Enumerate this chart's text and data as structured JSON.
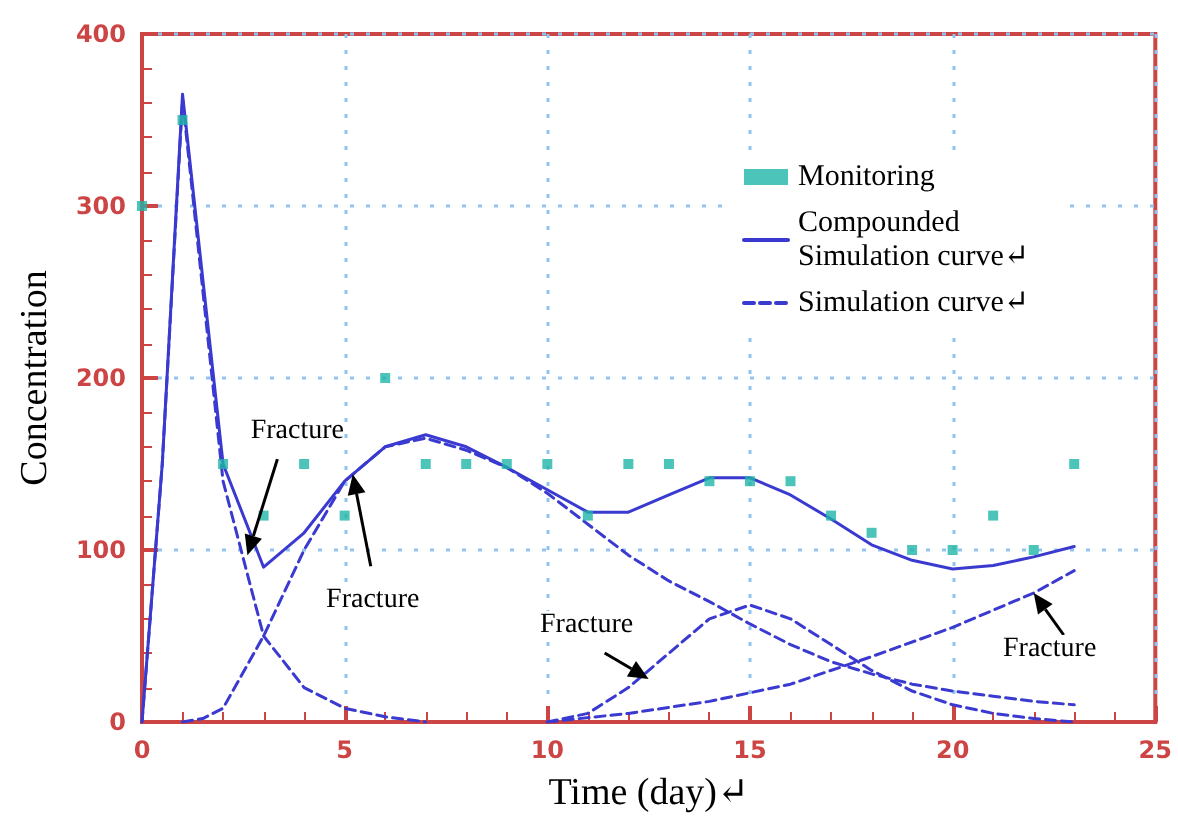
{
  "chart_data": {
    "type": "line",
    "xlabel": "Time (day)↵",
    "ylabel": "Concentration",
    "xlim": [
      0,
      25
    ],
    "xticks": [
      0,
      5,
      10,
      15,
      20,
      25
    ],
    "ylim": [
      0,
      400
    ],
    "yticks": [
      0,
      100,
      200,
      300,
      400
    ],
    "grid": true,
    "legend": "top right",
    "series": [
      {
        "name": "Monitoring",
        "type": "scatter",
        "marker": "square",
        "color": "#1fb5a8",
        "x": [
          0,
          1,
          2,
          3,
          4,
          5,
          6,
          7,
          8,
          9,
          10,
          11,
          12,
          13,
          14,
          15,
          16,
          17,
          18,
          19,
          20,
          21,
          22,
          23
        ],
        "values": [
          300,
          350,
          150,
          120,
          150,
          120,
          200,
          150,
          150,
          150,
          150,
          120,
          150,
          150,
          140,
          140,
          140,
          120,
          110,
          100,
          100,
          120,
          100,
          150
        ]
      },
      {
        "name": "Compounded Simulation curve↵",
        "line_style": "solid",
        "color": "#3a3ad0",
        "x": [
          0,
          0.5,
          1,
          2,
          3,
          4,
          5,
          6,
          7,
          8,
          9,
          10,
          11,
          12,
          13,
          14,
          15,
          16,
          17,
          18,
          19,
          20,
          21,
          22,
          23
        ],
        "values": [
          0,
          150,
          365,
          150,
          90,
          110,
          140,
          160,
          167,
          160,
          148,
          135,
          122,
          122,
          132,
          142,
          142,
          132,
          118,
          103,
          94,
          89,
          91,
          96,
          102
        ]
      },
      {
        "name": "Simulation curve↵",
        "line_style": "dashed",
        "color": "#3a3ad0",
        "x": [
          1,
          1.5,
          2,
          3,
          4,
          5,
          6,
          7,
          8,
          9,
          10,
          11,
          12,
          13,
          14,
          15,
          16,
          17,
          18,
          19,
          20,
          21,
          22,
          23
        ],
        "values": [
          0,
          2,
          8,
          50,
          100,
          140,
          160,
          165,
          158,
          148,
          133,
          115,
          97,
          82,
          70,
          57,
          45,
          35,
          28,
          22,
          18,
          15,
          12,
          10
        ]
      },
      {
        "line_style": "dashed",
        "color": "#3a3ad0",
        "x": [
          0,
          0.5,
          1,
          2,
          2.5,
          3,
          4,
          5,
          6,
          7
        ],
        "values": [
          0,
          150,
          362,
          140,
          95,
          50,
          20,
          8,
          3,
          0
        ]
      },
      {
        "line_style": "dashed",
        "color": "#3a3ad0",
        "x": [
          10,
          11,
          12,
          13,
          14,
          15,
          16,
          17,
          18,
          19,
          20,
          21,
          22,
          23
        ],
        "values": [
          0,
          5,
          20,
          40,
          60,
          68,
          60,
          45,
          30,
          18,
          10,
          5,
          2,
          0
        ]
      },
      {
        "line_style": "dashed",
        "color": "#3a3ad0",
        "x": [
          10,
          12,
          14,
          15,
          16,
          18,
          20,
          22,
          23
        ],
        "values": [
          0,
          5,
          12,
          17,
          22,
          38,
          55,
          75,
          88
        ]
      }
    ],
    "annotations": [
      {
        "text": "Fracture",
        "x": 2.6,
        "y": 97
      },
      {
        "text": "Fracture",
        "x": 5.2,
        "y": 144
      },
      {
        "text": "Fracture",
        "x": 12.5,
        "y": 25
      },
      {
        "text": "Fracture",
        "x": 22,
        "y": 75
      }
    ]
  }
}
